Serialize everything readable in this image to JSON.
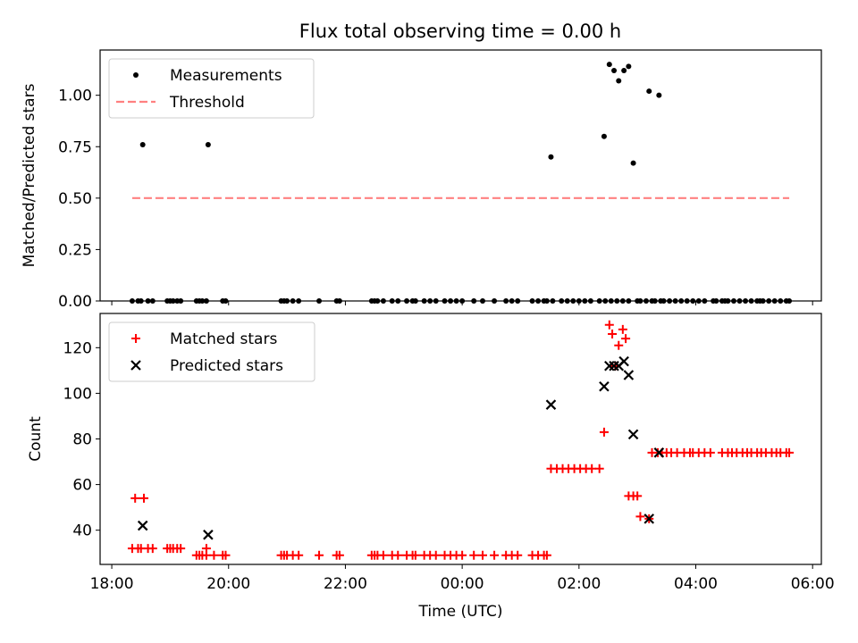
{
  "title": "Flux total observing time = 0.00 h",
  "chart_data": [
    {
      "type": "scatter",
      "panel": "top",
      "ylabel": "Matched/Predicted stars",
      "ylim": [
        0,
        1.22
      ],
      "yticks": [
        0.0,
        0.25,
        0.5,
        0.75,
        1.0
      ],
      "ytick_labels": [
        "0.00",
        "0.25",
        "0.50",
        "0.75",
        "1.00"
      ],
      "x_unit": "hours since 18:00 UTC",
      "xlim": [
        -0.2,
        12.15
      ],
      "legend": {
        "location": "top-left",
        "entries": [
          "Measurements",
          "Threshold"
        ]
      },
      "series": [
        {
          "name": "Measurements",
          "marker": "dot",
          "color": "#000000",
          "x": [
            0.35,
            0.45,
            0.5,
            0.62,
            0.7,
            0.95,
            1.0,
            1.05,
            1.12,
            1.18,
            1.45,
            1.5,
            1.55,
            1.62,
            1.9,
            1.95,
            2.9,
            2.95,
            3.0,
            3.1,
            3.2,
            3.55,
            3.85,
            3.9,
            4.45,
            4.5,
            4.55,
            4.65,
            4.8,
            4.9,
            5.05,
            5.15,
            5.2,
            5.35,
            5.45,
            5.55,
            5.7,
            5.8,
            5.9,
            6.0,
            6.2,
            6.35,
            6.55,
            6.75,
            6.85,
            6.95,
            7.2,
            7.3,
            7.4,
            7.45,
            7.55,
            7.7,
            7.8,
            7.9,
            8.0,
            8.1,
            8.2,
            8.35,
            8.45,
            8.55,
            8.65,
            8.75,
            8.85,
            9.0,
            9.05,
            9.15,
            9.25,
            9.3,
            9.4,
            9.45,
            9.55,
            9.65,
            9.75,
            9.85,
            9.95,
            10.05,
            10.15,
            10.3,
            10.35,
            10.45,
            10.5,
            10.55,
            10.65,
            10.75,
            10.85,
            10.95,
            11.05,
            11.1,
            11.15,
            11.25,
            11.35,
            11.45,
            11.55,
            11.6,
            0.53,
            1.65,
            7.52,
            8.43,
            8.52,
            8.6,
            8.68,
            8.77,
            8.85,
            8.93,
            9.2,
            9.37
          ],
          "y": [
            0,
            0,
            0,
            0,
            0,
            0,
            0,
            0,
            0,
            0,
            0,
            0,
            0,
            0,
            0,
            0,
            0,
            0,
            0,
            0,
            0,
            0,
            0,
            0,
            0,
            0,
            0,
            0,
            0,
            0,
            0,
            0,
            0,
            0,
            0,
            0,
            0,
            0,
            0,
            0,
            0,
            0,
            0,
            0,
            0,
            0,
            0,
            0,
            0,
            0,
            0,
            0,
            0,
            0,
            0,
            0,
            0,
            0,
            0,
            0,
            0,
            0,
            0,
            0,
            0,
            0,
            0,
            0,
            0,
            0,
            0,
            0,
            0,
            0,
            0,
            0,
            0,
            0,
            0,
            0,
            0,
            0,
            0,
            0,
            0,
            0,
            0,
            0,
            0,
            0,
            0,
            0,
            0,
            0,
            0.76,
            0.76,
            0.7,
            0.8,
            1.15,
            1.12,
            1.07,
            1.12,
            1.14,
            0.67,
            1.02,
            1.0
          ]
        },
        {
          "name": "Threshold",
          "style": "dashed",
          "color": "#ff8080",
          "x": [
            0.35,
            11.6
          ],
          "y": [
            0.5,
            0.5
          ]
        }
      ]
    },
    {
      "type": "scatter",
      "panel": "bottom",
      "ylabel": "Count",
      "xlabel": "Time (UTC)",
      "ylim": [
        25,
        135
      ],
      "yticks": [
        40,
        60,
        80,
        100,
        120
      ],
      "ytick_labels": [
        "40",
        "60",
        "80",
        "100",
        "120"
      ],
      "x_unit": "hours since 18:00 UTC",
      "xlim": [
        -0.2,
        12.15
      ],
      "xticks": [
        0,
        2,
        4,
        6,
        8,
        10,
        12
      ],
      "xtick_labels": [
        "18:00",
        "20:00",
        "22:00",
        "00:00",
        "02:00",
        "04:00",
        "06:00"
      ],
      "legend": {
        "location": "top-left",
        "entries": [
          "Matched stars",
          "Predicted stars"
        ]
      },
      "series": [
        {
          "name": "Matched stars",
          "marker": "plus",
          "color": "#ff0000",
          "x": [
            0.35,
            0.45,
            0.5,
            0.62,
            0.7,
            0.95,
            1.0,
            1.05,
            1.12,
            1.18,
            1.45,
            1.5,
            1.55,
            1.62,
            1.9,
            1.95,
            2.9,
            2.95,
            3.0,
            3.1,
            3.2,
            3.55,
            3.85,
            3.9,
            4.45,
            4.5,
            4.55,
            4.65,
            4.8,
            4.9,
            5.05,
            5.15,
            5.2,
            5.35,
            5.45,
            5.55,
            5.7,
            5.8,
            5.9,
            6.0,
            6.2,
            6.35,
            6.55,
            6.75,
            6.85,
            6.95,
            7.2,
            7.3,
            7.4,
            7.45,
            0.4,
            0.55,
            1.62,
            1.75,
            7.52,
            7.62,
            7.72,
            7.82,
            7.92,
            8.02,
            8.12,
            8.22,
            8.35,
            8.43,
            8.52,
            8.57,
            8.62,
            8.68,
            8.75,
            8.8,
            8.85,
            8.93,
            9.0,
            9.05,
            9.2,
            9.25,
            9.35,
            9.42,
            9.5,
            9.58,
            9.68,
            9.8,
            9.9,
            9.95,
            10.05,
            10.15,
            10.25,
            10.45,
            10.55,
            10.62,
            10.7,
            10.8,
            10.88,
            10.95,
            11.05,
            11.12,
            11.2,
            11.3,
            11.38,
            11.45,
            11.55,
            11.6
          ],
          "y": [
            32,
            32,
            32,
            32,
            32,
            32,
            32,
            32,
            32,
            32,
            29,
            29,
            29,
            29,
            29,
            29,
            29,
            29,
            29,
            29,
            29,
            29,
            29,
            29,
            29,
            29,
            29,
            29,
            29,
            29,
            29,
            29,
            29,
            29,
            29,
            29,
            29,
            29,
            29,
            29,
            29,
            29,
            29,
            29,
            29,
            29,
            29,
            29,
            29,
            29,
            54,
            54,
            32,
            29,
            67,
            67,
            67,
            67,
            67,
            67,
            67,
            67,
            67,
            83,
            130,
            126,
            112,
            121,
            128,
            124,
            55,
            55,
            55,
            46,
            45,
            74,
            74,
            74,
            74,
            74,
            74,
            74,
            74,
            74,
            74,
            74,
            74,
            74,
            74,
            74,
            74,
            74,
            74,
            74,
            74,
            74,
            74,
            74,
            74,
            74,
            74,
            74
          ]
        },
        {
          "name": "Predicted stars",
          "marker": "x",
          "color": "#000000",
          "x": [
            0.53,
            1.65,
            7.52,
            8.43,
            8.52,
            8.6,
            8.68,
            8.77,
            8.85,
            8.93,
            9.2,
            9.37
          ],
          "y": [
            42,
            38,
            95,
            103,
            112,
            112,
            112,
            114,
            108,
            82,
            45,
            74
          ]
        }
      ]
    }
  ]
}
